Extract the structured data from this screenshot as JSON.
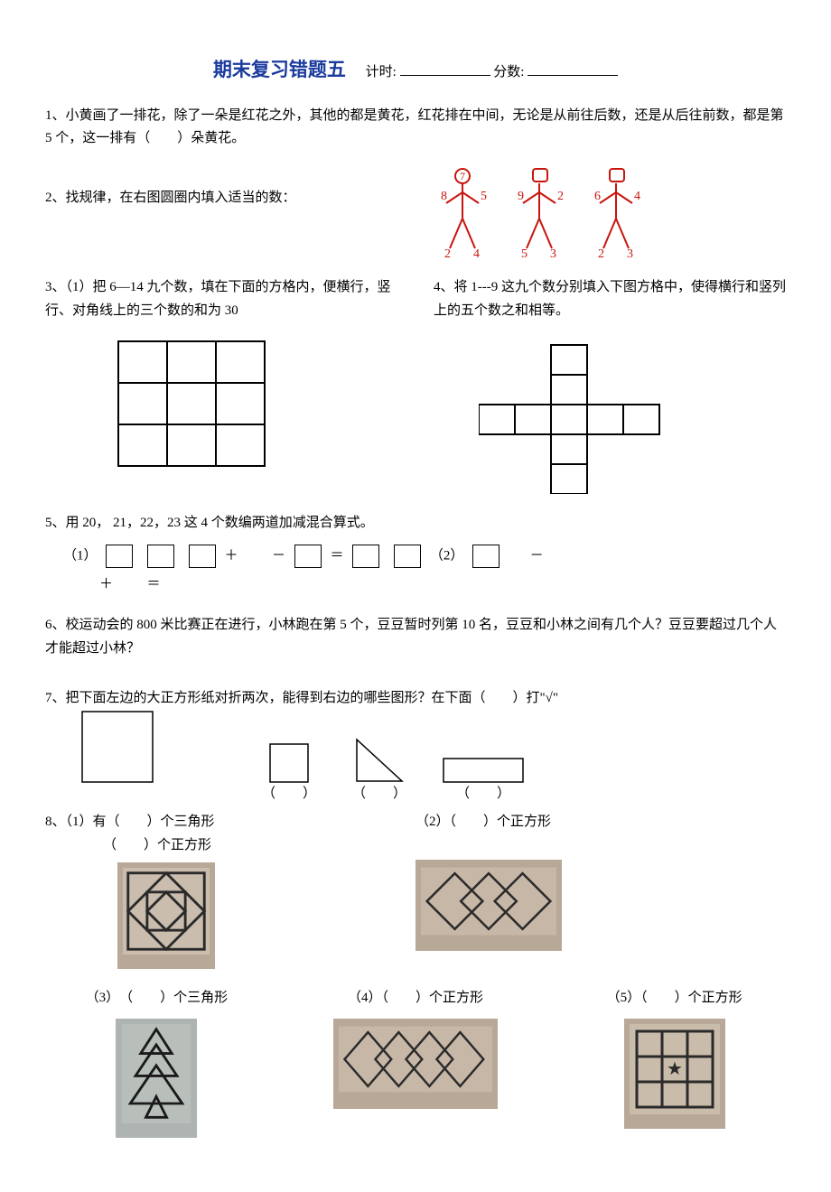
{
  "title": {
    "main": "期末复习错题五",
    "timer": "计时:",
    "score": "分数:"
  },
  "q1": {
    "text": "1、小黄画了一排花，除了一朵是红花之外，其他的都是黄花，红花排在中间，无论是从前往后数，还是从后往前数，都是第 5 个，这一排有（　　）朵黄花。"
  },
  "q2": {
    "text": "2、找规律，在右图圆圈内填入适当的数："
  },
  "q3": {
    "text": "3、（1）把 6—14 九个数，填在下面的方格内，便横行，竖行、对角线上的三个数的和为 30"
  },
  "q4": {
    "text": "4、将 1---9 这九个数分别填入下图方格中，使得横行和竖列上的五个数之和相等。"
  },
  "q5": {
    "prefix": "5、用 20，",
    "suffix": "21，22，23 这 4 个数编两道加减混合算式。",
    "p1": "（1）",
    "p2": "（2）",
    "plus": "＋",
    "minus": "－",
    "eq": "＝"
  },
  "q6": {
    "text": "6、校运动会的 800 米比赛正在进行，小林跑在第 5 个，豆豆暂时列第 10 名，豆豆和小林之间有几个人？豆豆要超过几个人才能超过小林？"
  },
  "q7": {
    "text": "7、把下面左边的大正方形纸对折两次，能得到右边的哪些图形？在下面（　　）打\"√\"",
    "paren": "（　　）"
  },
  "q8": {
    "p1a": "8、（1）有（　　）个三角形",
    "p1b": "（　　）个正方形",
    "p2": "（2）（　　）个正方形",
    "p3": "（3）　（　　）个三角形",
    "p4": "（4）（　　）个正方形",
    "p5": "（5）（　　）个正方形"
  },
  "stick": {
    "color": "#c8150d",
    "figs": [
      {
        "head": "7",
        "la": "8",
        "ra": "5",
        "ll": "2",
        "rl": "4",
        "head_circle": true
      },
      {
        "head": "",
        "la": "9",
        "ra": "2",
        "ll": "5",
        "rl": "3",
        "head_circle": false
      },
      {
        "head": "",
        "la": "6",
        "ra": "4",
        "ll": "2",
        "rl": "3",
        "head_circle": false
      }
    ]
  }
}
